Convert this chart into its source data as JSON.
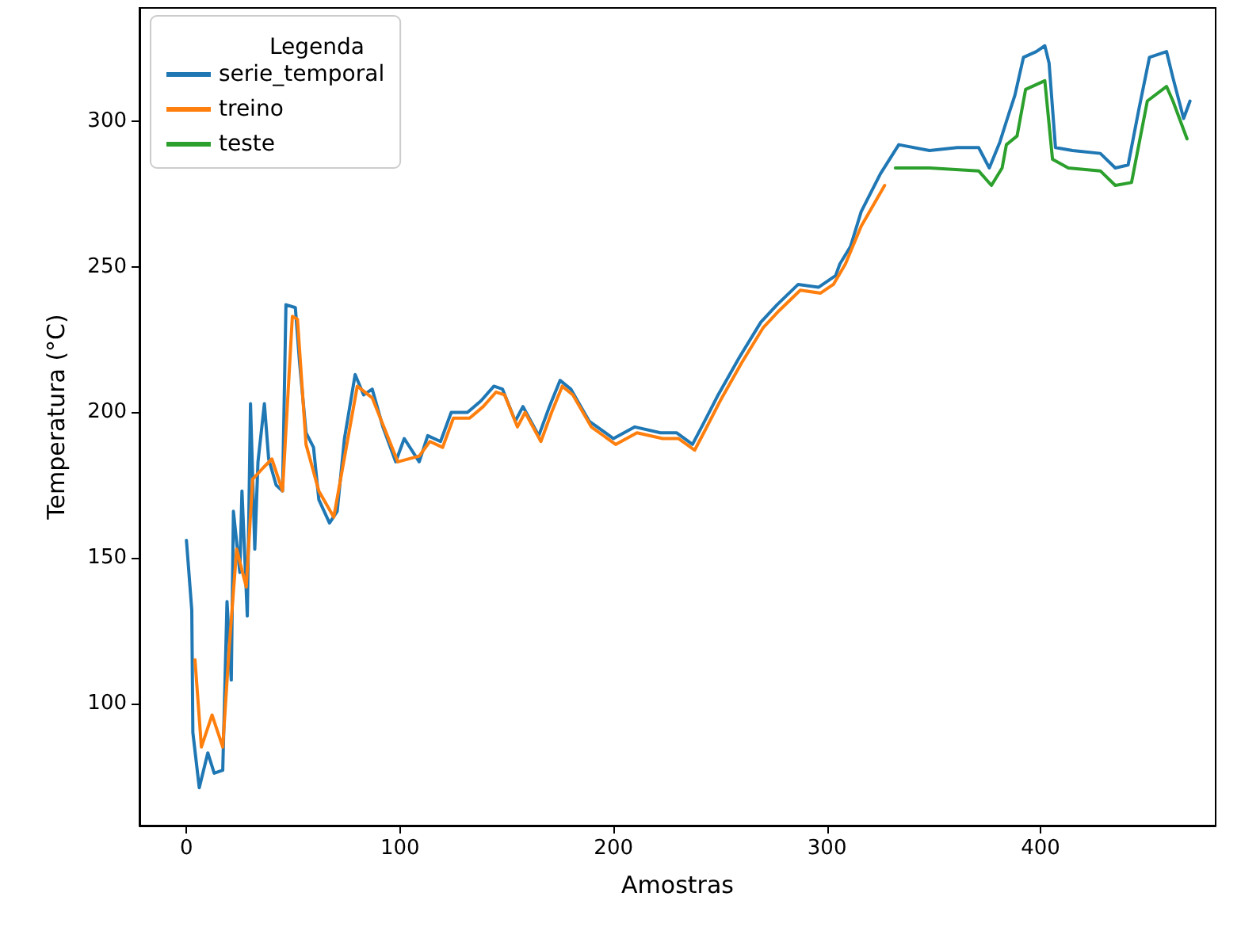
{
  "chart_data": {
    "type": "line",
    "xlabel": "Amostras",
    "ylabel": "Temperatura (°C)",
    "legend_title": "Legenda",
    "legend": "top left",
    "grid": false,
    "marker": "none",
    "line_style": "solid",
    "xlim": [
      -22,
      482
    ],
    "xticks": [
      0,
      100,
      200,
      300,
      400
    ],
    "ylim": [
      58,
      339
    ],
    "yticks": [
      100,
      150,
      200,
      250,
      300
    ],
    "series": [
      {
        "name": "serie_temporal",
        "color": "#1f77b4",
        "x": [
          0,
          2.5,
          3,
          6,
          10,
          13,
          17,
          19,
          21,
          22,
          25,
          26,
          28.5,
          30,
          32,
          33.5,
          36.5,
          38.5,
          42,
          45,
          46.6,
          51,
          53,
          56,
          59.5,
          62,
          67,
          70.6,
          74,
          79,
          83,
          87,
          92,
          98,
          102,
          109,
          113,
          119,
          124,
          131.6,
          138,
          144,
          148,
          154,
          157.6,
          165,
          170,
          175,
          180,
          188.6,
          200,
          210,
          222,
          229.5,
          237,
          242,
          249,
          259,
          269,
          276.6,
          286.5,
          296,
          304,
          306,
          311,
          316,
          325,
          333.6,
          348,
          361,
          371,
          376,
          381,
          384,
          388,
          392,
          398,
          402,
          404,
          407,
          415,
          428,
          435,
          441,
          446,
          451,
          459,
          462,
          467,
          470
        ],
        "values": [
          156,
          132,
          90,
          71,
          83,
          76,
          77,
          135,
          108,
          166,
          145,
          173,
          130,
          203,
          153,
          183,
          203,
          184,
          175,
          173,
          237,
          236,
          217,
          193,
          188,
          170,
          162,
          166,
          191,
          213,
          206,
          208,
          195,
          183,
          191,
          183,
          192,
          190,
          200,
          200,
          204,
          209,
          208,
          197,
          202,
          192,
          202,
          211,
          208,
          197,
          191,
          195,
          193,
          193,
          189,
          196,
          206,
          219,
          231,
          237,
          244,
          243,
          247,
          251,
          257,
          269,
          282,
          292,
          290,
          291,
          291,
          284,
          293,
          300,
          309,
          322,
          324,
          326,
          320,
          291,
          290,
          289,
          284,
          285,
          304,
          322,
          324,
          315,
          301,
          307
        ]
      },
      {
        "name": "treino",
        "color": "#ff7f0e",
        "x": [
          4,
          7,
          12,
          17,
          20,
          23.5,
          28,
          31,
          36,
          40,
          45,
          49.6,
          52,
          56,
          62,
          69,
          80,
          87,
          99,
          109,
          114,
          120,
          125,
          132.6,
          139,
          145,
          149,
          155,
          158.6,
          166,
          171,
          176,
          181,
          189.6,
          201,
          211,
          223,
          230.5,
          238,
          243,
          250,
          260,
          270,
          277.6,
          287.5,
          297,
          303,
          308.6,
          316,
          327
        ],
        "values": [
          115,
          85,
          96,
          85,
          119,
          153,
          140,
          177,
          181,
          184,
          173,
          233,
          232,
          189,
          173,
          164,
          209,
          205,
          183,
          185,
          190,
          188,
          198,
          198,
          202,
          207,
          206,
          195,
          200,
          190,
          200,
          209,
          206,
          195,
          189,
          193,
          191,
          191,
          187,
          194,
          204,
          217,
          229,
          235,
          242,
          241,
          244,
          251,
          264,
          278
        ]
      },
      {
        "name": "teste",
        "color": "#2ca02c",
        "x": [
          332,
          348,
          371,
          377,
          382,
          384,
          389,
          393,
          402,
          405.6,
          413,
          428,
          435,
          442.6,
          450,
          459,
          462,
          468.6
        ],
        "values": [
          284,
          284,
          283,
          278,
          284,
          292,
          295,
          311,
          314,
          287,
          284,
          283,
          278,
          279,
          307,
          312,
          307,
          294
        ]
      }
    ]
  }
}
